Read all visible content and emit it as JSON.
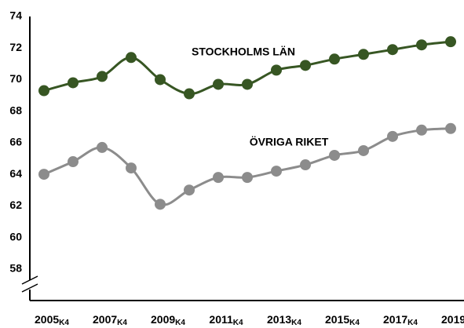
{
  "chart_data": {
    "type": "line",
    "categories": [
      "2005",
      null,
      "2007",
      null,
      "2009",
      null,
      "2011",
      null,
      "2013",
      null,
      "2015",
      null,
      "2017",
      null,
      "2019"
    ],
    "category_suffix": "K4",
    "series": [
      {
        "name": "STOCKHOLMS LÄN",
        "color": "#375623",
        "values": [
          69.3,
          69.8,
          70.2,
          71.4,
          70.0,
          69.1,
          69.7,
          69.7,
          70.6,
          70.9,
          71.3,
          71.6,
          71.9,
          72.2,
          72.4
        ]
      },
      {
        "name": "ÖVRIGA RIKET",
        "color": "#8c8c8c",
        "values": [
          64.0,
          64.8,
          65.7,
          64.4,
          62.1,
          63.0,
          63.8,
          63.8,
          64.2,
          64.6,
          65.2,
          65.5,
          66.4,
          66.8,
          66.9
        ]
      }
    ],
    "ylim": [
      56,
      74
    ],
    "yticks": [
      58,
      60,
      62,
      64,
      66,
      68,
      70,
      72,
      74
    ],
    "grid": false,
    "smooth": true
  }
}
